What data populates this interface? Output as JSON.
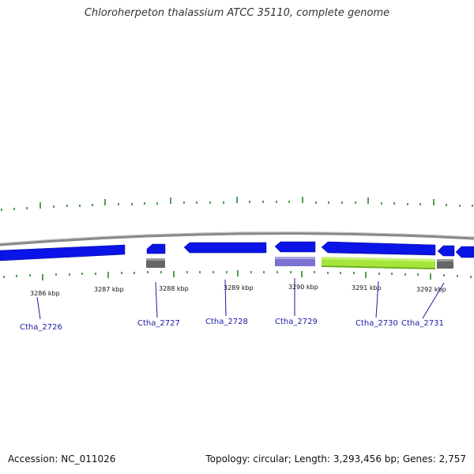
{
  "title": "Chloroherpeton thalassium ATCC 35110, complete genome",
  "footer": {
    "accession": "Accession: NC_011026",
    "summary": "Topology: circular; Length: 3,293,456 bp; Genes: 2,757"
  },
  "colors": {
    "backbone": "#888888",
    "forward_gene": "#0a14e6",
    "gene_gray": "#666666",
    "gene_lavender": "#7a72d2",
    "gene_green": "#a6e63c",
    "tick": "#1e7a1e",
    "label": "#1a1aa6"
  },
  "kbp_ticks": [
    "3286 kbp",
    "3287 kbp",
    "3288 kbp",
    "3289 kbp",
    "3290 kbp",
    "3291 kbp",
    "3292 kbp"
  ],
  "genes": [
    {
      "id": "Ctha_2726"
    },
    {
      "id": "Ctha_2727"
    },
    {
      "id": "Ctha_2728"
    },
    {
      "id": "Ctha_2729"
    },
    {
      "id": "Ctha_2730"
    },
    {
      "id": "Ctha_2731"
    }
  ]
}
